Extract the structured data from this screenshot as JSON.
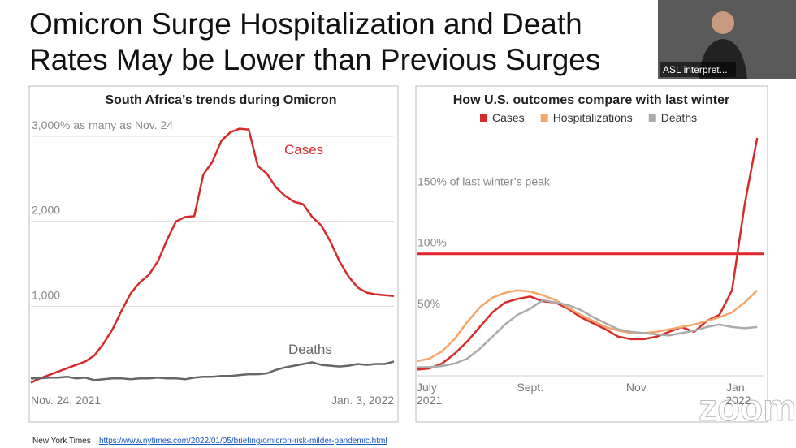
{
  "slide": {
    "title_lines": [
      "Omicron Surge Hospitalization and Death",
      "Rates May be Lower than Previous Surges"
    ]
  },
  "video": {
    "label": "ASL interpret..."
  },
  "watermark": "zoom",
  "source": {
    "name": "New York Times",
    "url": "https://www.nytimes.com/2022/01/05/briefing/omicron-risk-milder-pandemic.html"
  },
  "chart_data": [
    {
      "type": "line",
      "title": "South Africa’s trends during Omicron",
      "legend": "inline",
      "grid": true,
      "x": [
        0,
        1,
        2,
        3,
        4,
        5,
        6,
        7,
        8,
        9,
        10,
        11,
        12,
        13,
        14,
        15,
        16,
        17,
        18,
        19,
        20,
        21,
        22,
        23,
        24,
        25,
        26,
        27,
        28,
        29,
        30,
        31,
        32,
        33,
        34,
        35,
        36,
        37,
        38,
        39,
        40
      ],
      "xlim": [
        0,
        40
      ],
      "xticks": [
        {
          "value": 0,
          "label": "Nov. 24, 2021"
        },
        {
          "value": 40,
          "label": "Jan. 3, 2022"
        }
      ],
      "ylim": [
        0,
        3000
      ],
      "yticks": [
        {
          "value": 1000,
          "label": "1,000"
        },
        {
          "value": 2000,
          "label": "2,000"
        },
        {
          "value": 3000,
          "label": "3,000% as many as Nov. 24"
        }
      ],
      "series": [
        {
          "name": "Cases",
          "color": "#d62b2b",
          "values": [
            100,
            150,
            190,
            230,
            270,
            310,
            350,
            420,
            560,
            730,
            950,
            1150,
            1280,
            1370,
            1530,
            1780,
            2000,
            2050,
            2060,
            2550,
            2700,
            2950,
            3050,
            3090,
            3080,
            2650,
            2560,
            2400,
            2300,
            2230,
            2200,
            2050,
            1950,
            1760,
            1530,
            1350,
            1220,
            1160,
            1140,
            1130,
            1120
          ]
        },
        {
          "name": "Deaths",
          "color": "#666666",
          "values": [
            150,
            150,
            160,
            160,
            170,
            150,
            160,
            130,
            140,
            150,
            150,
            140,
            150,
            150,
            160,
            150,
            150,
            140,
            160,
            170,
            170,
            180,
            180,
            190,
            200,
            200,
            210,
            250,
            280,
            300,
            320,
            340,
            310,
            300,
            290,
            300,
            320,
            310,
            320,
            320,
            350
          ]
        }
      ]
    },
    {
      "type": "line",
      "title": "How U.S. outcomes compare with last winter",
      "legend": "top",
      "grid": false,
      "highlight_tick": {
        "value": 100,
        "color": "#e0262a"
      },
      "x": [
        0,
        1,
        2,
        3,
        4,
        5,
        6,
        7,
        8,
        9,
        10,
        11,
        12,
        13,
        14,
        15,
        16,
        17,
        18,
        19,
        20,
        21,
        22,
        23,
        24,
        25,
        26,
        27
      ],
      "xlim": [
        0,
        27.5
      ],
      "xticks": [
        {
          "value": 0,
          "label": "July 2021"
        },
        {
          "value": 9,
          "label": "Sept."
        },
        {
          "value": 17.5,
          "label": "Nov."
        },
        {
          "value": 26.5,
          "label": "Jan. 2022"
        }
      ],
      "ylim": [
        0,
        195
      ],
      "yticks": [
        {
          "value": 50,
          "label": "50%"
        },
        {
          "value": 100,
          "label": "100%"
        },
        {
          "value": 150,
          "label": "150% of last winter’s peak"
        }
      ],
      "series": [
        {
          "name": "Cases",
          "color": "#d62b2b",
          "values": [
            5,
            6,
            10,
            18,
            28,
            40,
            52,
            60,
            63,
            65,
            61,
            60,
            55,
            48,
            43,
            38,
            32,
            30,
            30,
            32,
            36,
            40,
            36,
            45,
            50,
            70,
            140,
            195
          ]
        },
        {
          "name": "Hospitalizations",
          "color": "#f5a66a",
          "values": [
            12,
            14,
            20,
            30,
            44,
            56,
            64,
            68,
            70,
            69,
            66,
            62,
            56,
            50,
            45,
            40,
            37,
            35,
            35,
            36,
            38,
            40,
            42,
            45,
            48,
            52,
            60,
            70
          ]
        },
        {
          "name": "Deaths",
          "color": "#aaaaaa",
          "values": [
            7,
            7,
            8,
            10,
            14,
            22,
            32,
            42,
            50,
            55,
            62,
            60,
            58,
            54,
            48,
            43,
            38,
            36,
            35,
            34,
            33,
            35,
            37,
            40,
            42,
            40,
            39,
            40
          ]
        }
      ]
    }
  ]
}
